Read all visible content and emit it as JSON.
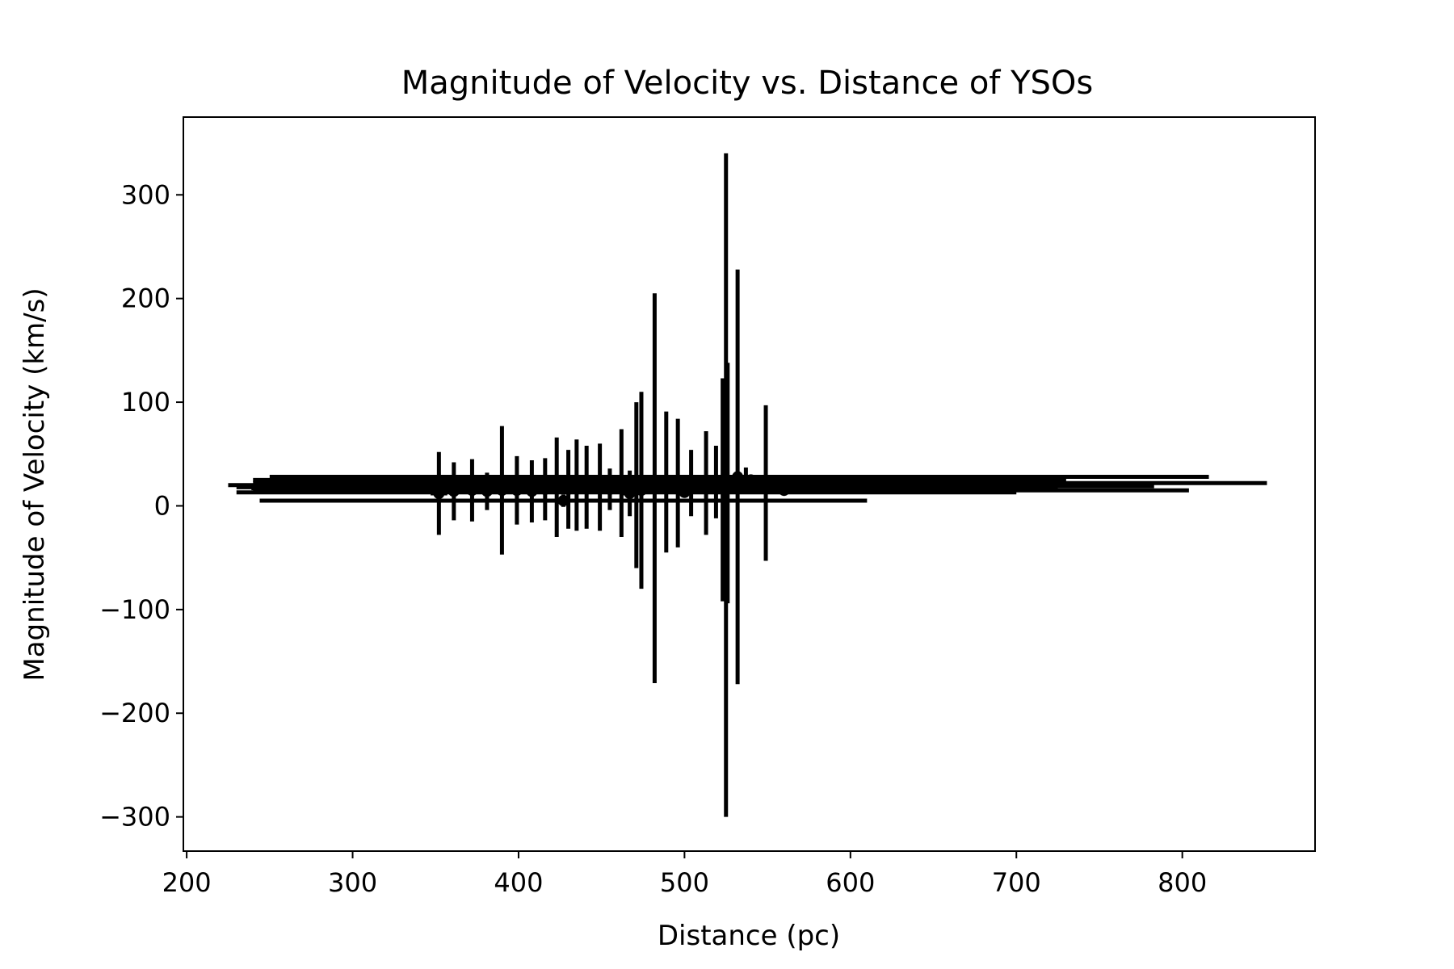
{
  "chart_data": {
    "type": "scatter",
    "title": "Magnitude of Velocity vs. Distance of YSOs",
    "xlabel": "Distance (pc)",
    "ylabel": "Magnitude of Velocity (km/s)",
    "xlim": [
      198,
      880
    ],
    "ylim": [
      -333,
      375
    ],
    "xticks": [
      200,
      300,
      400,
      500,
      600,
      700,
      800
    ],
    "yticks": [
      -300,
      -200,
      -100,
      0,
      100,
      200,
      300
    ],
    "xtick_labels": [
      "200",
      "300",
      "400",
      "500",
      "600",
      "700",
      "800"
    ],
    "ytick_labels": [
      "−300",
      "−200",
      "−100",
      "0",
      "100",
      "200",
      "300"
    ],
    "grid": false,
    "legend": "none",
    "marker_color": "#000000",
    "series": [
      {
        "points": [
          {
            "x": 525,
            "y": 20,
            "xerr": [
              300,
              190
            ],
            "yerr": [
              320,
              320
            ]
          },
          {
            "x": 532,
            "y": 28,
            "xerr": [
              282,
              284
            ],
            "yerr": [
              200,
              200
            ]
          },
          {
            "x": 482,
            "y": 17,
            "xerr": [
              243,
              243
            ],
            "yerr": [
              188,
              188
            ]
          },
          {
            "x": 526,
            "y": 22,
            "xerr": [
              286,
              325
            ],
            "yerr": [
              116,
              116
            ]
          },
          {
            "x": 523,
            "y": 18,
            "xerr": [
              8,
              8
            ],
            "yerr": [
              110,
              105
            ]
          },
          {
            "x": 471,
            "y": 20,
            "xerr": [
              6,
              6
            ],
            "yerr": [
              80,
              80
            ]
          },
          {
            "x": 474,
            "y": 15,
            "xerr": [
              6,
              6
            ],
            "yerr": [
              95,
              95
            ]
          },
          {
            "x": 549,
            "y": 22,
            "xerr": [
              8,
              8
            ],
            "yerr": [
              75,
              75
            ]
          },
          {
            "x": 427,
            "y": 5,
            "xerr": [
              183,
              183
            ],
            "yerr": [
              6,
              6
            ]
          },
          {
            "x": 390,
            "y": 15,
            "xerr": [
              150,
              150
            ],
            "yerr": [
              62,
              62
            ]
          },
          {
            "x": 352,
            "y": 12,
            "xerr": [
              5,
              5
            ],
            "yerr": [
              40,
              40
            ]
          },
          {
            "x": 361,
            "y": 14,
            "xerr": [
              5,
              5
            ],
            "yerr": [
              28,
              28
            ]
          },
          {
            "x": 372,
            "y": 15,
            "xerr": [
              5,
              5
            ],
            "yerr": [
              30,
              30
            ]
          },
          {
            "x": 381,
            "y": 14,
            "xerr": [
              5,
              5
            ],
            "yerr": [
              18,
              18
            ]
          },
          {
            "x": 399,
            "y": 15,
            "xerr": [
              5,
              5
            ],
            "yerr": [
              33,
              33
            ]
          },
          {
            "x": 408,
            "y": 14,
            "xerr": [
              5,
              5
            ],
            "yerr": [
              30,
              30
            ]
          },
          {
            "x": 416,
            "y": 16,
            "xerr": [
              5,
              5
            ],
            "yerr": [
              30,
              30
            ]
          },
          {
            "x": 423,
            "y": 18,
            "xerr": [
              5,
              5
            ],
            "yerr": [
              48,
              48
            ]
          },
          {
            "x": 430,
            "y": 16,
            "xerr": [
              5,
              5
            ],
            "yerr": [
              38,
              38
            ]
          },
          {
            "x": 435,
            "y": 20,
            "xerr": [
              5,
              5
            ],
            "yerr": [
              44,
              44
            ]
          },
          {
            "x": 441,
            "y": 18,
            "xerr": [
              5,
              5
            ],
            "yerr": [
              40,
              40
            ]
          },
          {
            "x": 449,
            "y": 18,
            "xerr": [
              5,
              5
            ],
            "yerr": [
              42,
              42
            ]
          },
          {
            "x": 455,
            "y": 16,
            "xerr": [
              5,
              5
            ],
            "yerr": [
              20,
              20
            ]
          },
          {
            "x": 462,
            "y": 22,
            "xerr": [
              5,
              5
            ],
            "yerr": [
              52,
              52
            ]
          },
          {
            "x": 467,
            "y": 12,
            "xerr": [
              5,
              5
            ],
            "yerr": [
              22,
              22
            ]
          },
          {
            "x": 489,
            "y": 23,
            "xerr": [
              5,
              5
            ],
            "yerr": [
              68,
              68
            ]
          },
          {
            "x": 496,
            "y": 22,
            "xerr": [
              5,
              5
            ],
            "yerr": [
              62,
              62
            ]
          },
          {
            "x": 504,
            "y": 22,
            "xerr": [
              5,
              5
            ],
            "yerr": [
              32,
              32
            ]
          },
          {
            "x": 513,
            "y": 22,
            "xerr": [
              5,
              5
            ],
            "yerr": [
              50,
              50
            ]
          },
          {
            "x": 519,
            "y": 23,
            "xerr": [
              5,
              5
            ],
            "yerr": [
              35,
              35
            ]
          },
          {
            "x": 537,
            "y": 25,
            "xerr": [
              5,
              5
            ],
            "yerr": [
              12,
              12
            ]
          },
          {
            "x": 260,
            "y": 18,
            "xerr": [
              30,
              460
            ],
            "yerr": [
              3,
              3
            ]
          },
          {
            "x": 500,
            "y": 13,
            "xerr": [
              270,
              200
            ],
            "yerr": [
              3,
              3
            ]
          },
          {
            "x": 540,
            "y": 25,
            "xerr": [
              300,
              190
            ],
            "yerr": [
              3,
              3
            ]
          },
          {
            "x": 560,
            "y": 15,
            "xerr": [
              318,
              244
            ],
            "yerr": [
              3,
              3
            ]
          },
          {
            "x": 500,
            "y": 19,
            "xerr": [
              256,
              283
            ],
            "yerr": [
              3,
              3
            ]
          }
        ]
      }
    ]
  }
}
